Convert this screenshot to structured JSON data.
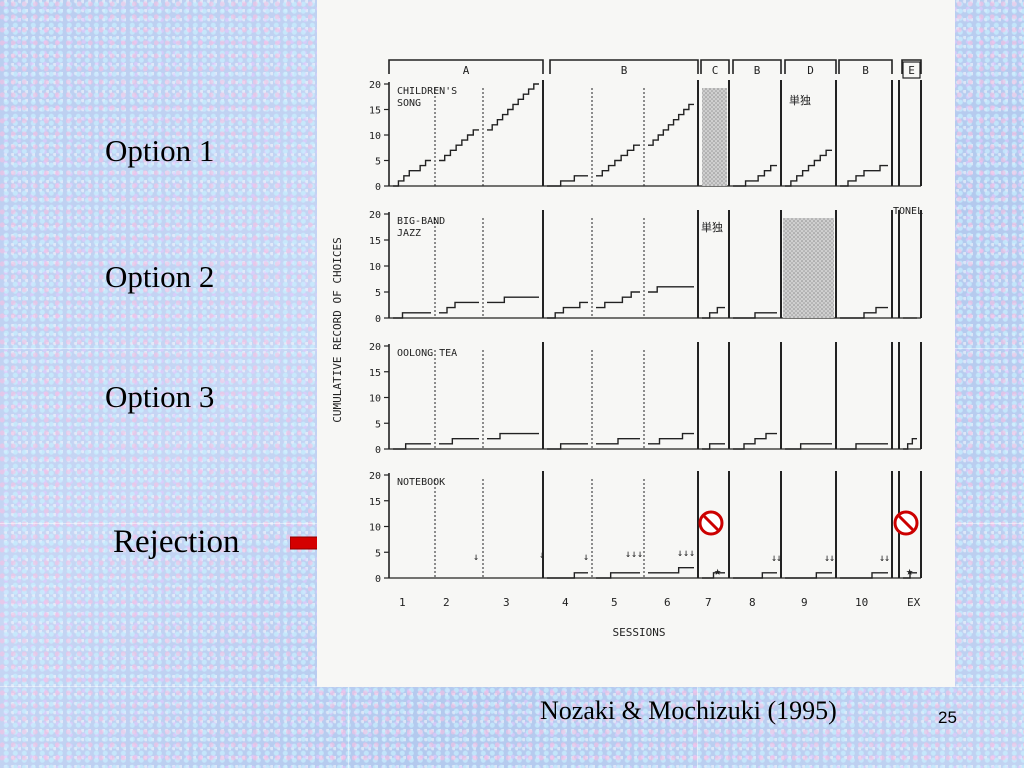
{
  "slide": {
    "options": [
      "Option 1",
      "Option 2",
      "Option 3"
    ],
    "rejection_label": "Rejection",
    "citation": "Nozaki & Mochizuki (1995)",
    "slide_number": "25",
    "arrow_color": "#d40000"
  },
  "chart_data": {
    "type": "line",
    "ylabel": "CUMULATIVE RECORD OF CHOICES",
    "xlabel": "SESSIONS",
    "session_labels": [
      "1",
      "2",
      "3",
      "4",
      "5",
      "6",
      "7",
      "8",
      "9",
      "10",
      "EX"
    ],
    "phases": [
      "A",
      "B",
      "C",
      "B",
      "D",
      "B",
      "E"
    ],
    "yticks": [
      "0",
      "5",
      "10",
      "15",
      "20"
    ],
    "ylim": [
      0,
      20
    ],
    "phase_annotations": {
      "row1_d": "単独",
      "row2_c": "単独",
      "row2_e": "TONEL"
    },
    "rows": [
      {
        "name": "CHILDREN'S",
        "name2": "SONG",
        "segments": [
          {
            "session": 1,
            "cum": [
              0,
              1,
              2,
              3,
              3,
              4,
              5
            ]
          },
          {
            "session": 2,
            "cum": [
              5,
              6,
              7,
              8,
              9,
              10,
              11
            ]
          },
          {
            "session": 3,
            "cum": [
              11,
              12,
              13,
              14,
              15,
              16,
              17,
              18,
              19,
              20
            ]
          },
          {
            "session": 4,
            "cum": [
              0,
              0,
              1,
              1,
              2,
              2
            ]
          },
          {
            "session": 5,
            "cum": [
              2,
              3,
              4,
              5,
              6,
              7,
              8
            ]
          },
          {
            "session": 6,
            "cum": [
              8,
              9,
              10,
              11,
              12,
              13,
              14,
              15,
              16
            ]
          },
          {
            "session": 8,
            "cum": [
              0,
              0,
              1,
              1,
              2,
              3,
              4
            ]
          },
          {
            "session": 9,
            "cum": [
              0,
              1,
              2,
              3,
              4,
              5,
              6,
              7
            ]
          },
          {
            "session": 10,
            "cum": [
              0,
              1,
              2,
              3,
              3,
              4
            ]
          }
        ]
      },
      {
        "name": "BIG-BAND",
        "name2": "JAZZ",
        "segments": [
          {
            "session": 1,
            "cum": [
              0,
              1,
              1,
              1
            ]
          },
          {
            "session": 2,
            "cum": [
              1,
              2,
              3,
              3,
              3
            ]
          },
          {
            "session": 3,
            "cum": [
              3,
              3,
              4,
              4,
              4,
              4
            ]
          },
          {
            "session": 4,
            "cum": [
              0,
              1,
              2,
              2,
              3
            ]
          },
          {
            "session": 5,
            "cum": [
              2,
              3,
              3,
              4,
              5
            ]
          },
          {
            "session": 6,
            "cum": [
              5,
              6,
              6,
              6,
              6
            ]
          },
          {
            "session": 7,
            "cum": [
              0,
              1,
              2
            ]
          },
          {
            "session": 8,
            "cum": [
              0,
              0,
              1,
              1
            ]
          },
          {
            "session": 10,
            "cum": [
              0,
              0,
              1,
              2
            ]
          },
          {
            "session": 11,
            "cum": [
              0,
              0
            ]
          }
        ]
      },
      {
        "name": "OOLONG TEA",
        "name2": "",
        "segments": [
          {
            "session": 1,
            "cum": [
              0,
              1,
              1
            ]
          },
          {
            "session": 2,
            "cum": [
              1,
              2,
              2
            ]
          },
          {
            "session": 3,
            "cum": [
              2,
              3,
              3,
              3
            ]
          },
          {
            "session": 4,
            "cum": [
              0,
              1,
              1
            ]
          },
          {
            "session": 5,
            "cum": [
              1,
              1,
              2,
              2
            ]
          },
          {
            "session": 6,
            "cum": [
              1,
              2,
              2,
              3
            ]
          },
          {
            "session": 7,
            "cum": [
              0,
              1,
              1
            ]
          },
          {
            "session": 8,
            "cum": [
              0,
              1,
              2,
              3
            ]
          },
          {
            "session": 9,
            "cum": [
              0,
              1,
              1
            ]
          },
          {
            "session": 10,
            "cum": [
              0,
              1,
              1
            ]
          },
          {
            "session": 11,
            "cum": [
              0,
              1,
              2
            ]
          }
        ]
      },
      {
        "name": "NOTEBOOK",
        "name2": "",
        "segments": [
          {
            "session": 4,
            "cum": [
              0,
              0,
              1
            ]
          },
          {
            "session": 5,
            "cum": [
              0,
              1,
              1
            ]
          },
          {
            "session": 6,
            "cum": [
              1,
              1,
              2
            ]
          },
          {
            "session": 7,
            "cum": [
              0,
              1
            ]
          },
          {
            "session": 8,
            "cum": [
              0,
              0,
              1
            ]
          },
          {
            "session": 9,
            "cum": [
              0,
              0,
              1
            ]
          },
          {
            "session": 10,
            "cum": [
              0,
              0,
              1
            ]
          },
          {
            "session": 11,
            "cum": [
              0,
              1
            ]
          }
        ]
      }
    ]
  }
}
